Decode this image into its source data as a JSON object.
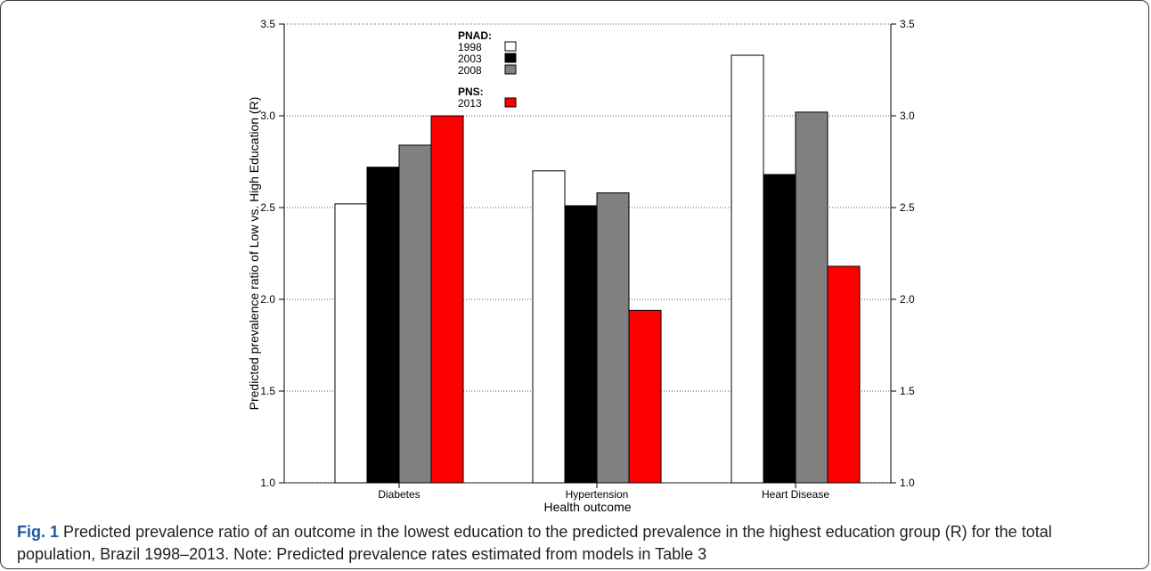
{
  "chart_data": {
    "type": "bar",
    "categories": [
      "Diabetes",
      "Hypertension",
      "Heart Disease"
    ],
    "series": [
      {
        "name": "1998",
        "color": "#ffffff",
        "values": [
          2.52,
          2.7,
          3.33
        ]
      },
      {
        "name": "2003",
        "color": "#000000",
        "values": [
          2.72,
          2.51,
          2.68
        ]
      },
      {
        "name": "2008",
        "color": "#808080",
        "values": [
          2.84,
          2.58,
          3.02
        ]
      },
      {
        "name": "2013",
        "color": "#ff0000",
        "values": [
          3.0,
          1.94,
          2.18
        ]
      }
    ],
    "legend_groups": [
      {
        "title": "PNAD:",
        "series": [
          "1998",
          "2003",
          "2008"
        ]
      },
      {
        "title": "PNS:",
        "series": [
          "2013"
        ]
      }
    ],
    "legend_position": "top-center",
    "xlabel": "Health outcome",
    "ylabel": "Predicted prevalence ratio of Low vs. High Education (R)",
    "ylim": [
      1.0,
      3.5
    ],
    "yticks": [
      "1.0",
      "1.5",
      "2.0",
      "2.5",
      "3.0",
      "3.5"
    ],
    "y_axis_right": true,
    "grid": "horizontal dotted"
  },
  "caption": {
    "label": "Fig. 1",
    "text": "Predicted prevalence ratio of an outcome in the lowest education to the predicted prevalence in the highest education group (R) for the total population, Brazil 1998–2013. Note: Predicted prevalence rates estimated from models in Table 3"
  }
}
